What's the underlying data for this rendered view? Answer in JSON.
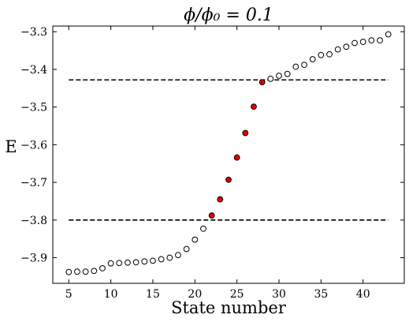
{
  "chart_data": {
    "type": "scatter",
    "title": "ϕ/ϕ₀ = 0.1",
    "xlabel": "State number",
    "ylabel": "E",
    "xlim": [
      3.1,
      44.9
    ],
    "ylim": [
      -3.968,
      -3.285
    ],
    "xticks": [
      5,
      10,
      15,
      20,
      25,
      30,
      35,
      40
    ],
    "yticks": [
      -3.9,
      -3.8,
      -3.7,
      -3.6,
      -3.5,
      -3.4,
      -3.3
    ],
    "xtick_labels": [
      "5",
      "10",
      "15",
      "20",
      "25",
      "30",
      "35",
      "40"
    ],
    "ytick_labels": [
      "−3.9",
      "−3.8",
      "−3.7",
      "−3.6",
      "−3.5",
      "−3.4",
      "−3.3"
    ],
    "grid": false,
    "series": [
      {
        "marker": "open-circle",
        "color": "#ffffff",
        "x": [
          5,
          6,
          7,
          8,
          9,
          10,
          11,
          12,
          13,
          14,
          15,
          16,
          17,
          18,
          19,
          20,
          21,
          29,
          30,
          31,
          32,
          33,
          34,
          35,
          36,
          37,
          38,
          39,
          40,
          41,
          42,
          43
        ],
        "y": [
          -3.938,
          -3.937,
          -3.937,
          -3.935,
          -3.928,
          -3.915,
          -3.914,
          -3.913,
          -3.912,
          -3.91,
          -3.908,
          -3.904,
          -3.9,
          -3.893,
          -3.877,
          -3.852,
          -3.823,
          -3.425,
          -3.417,
          -3.412,
          -3.393,
          -3.388,
          -3.373,
          -3.362,
          -3.36,
          -3.347,
          -3.34,
          -3.33,
          -3.327,
          -3.323,
          -3.323,
          -3.307
        ]
      },
      {
        "marker": "filled-circle",
        "color": "#e60000",
        "x": [
          22,
          23,
          24,
          25,
          26,
          27,
          28
        ],
        "y": [
          -3.788,
          -3.745,
          -3.693,
          -3.634,
          -3.569,
          -3.499,
          -3.434
        ]
      }
    ],
    "reference_lines": [
      {
        "y": -3.428,
        "x_from": 5,
        "x_to": 43,
        "style": "dashed",
        "color": "#000000"
      },
      {
        "y": -3.8,
        "x_from": 5,
        "x_to": 43,
        "style": "dashed",
        "color": "#000000"
      }
    ]
  }
}
